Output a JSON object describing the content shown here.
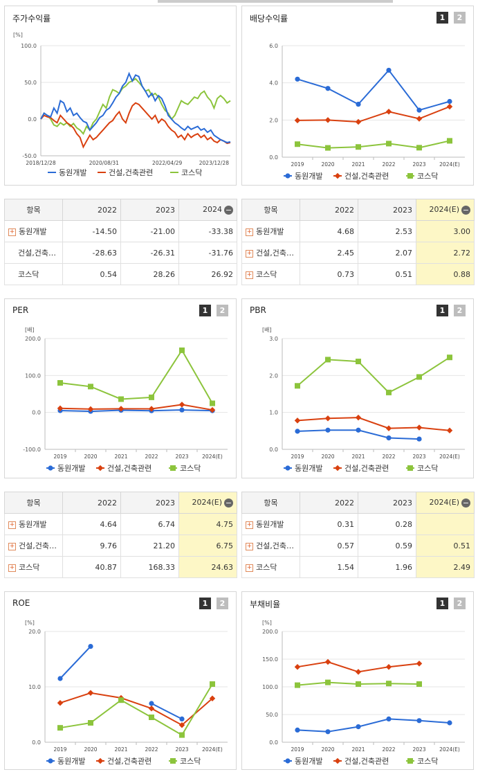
{
  "panels": {
    "price": {
      "title": "주가수익률"
    },
    "dividend": {
      "title": "배당수익률"
    },
    "per": {
      "title": "PER"
    },
    "pbr": {
      "title": "PBR"
    },
    "roe": {
      "title": "ROE"
    },
    "debt": {
      "title": "부채비율"
    }
  },
  "buttons": {
    "b1": "1",
    "b2": "2"
  },
  "tables": {
    "price": {
      "headers": [
        "항목",
        "2022",
        "2023",
        "2024"
      ],
      "rows": [
        {
          "label": "동원개발",
          "plus": true,
          "values": [
            "-14.50",
            "-21.00",
            "-33.38"
          ]
        },
        {
          "label": "건설,건축…",
          "plus": false,
          "values": [
            "-28.63",
            "-26.31",
            "-31.76"
          ]
        },
        {
          "label": "코스닥",
          "plus": false,
          "values": [
            "0.54",
            "28.26",
            "26.92"
          ]
        }
      ]
    },
    "dividend": {
      "headers": [
        "항목",
        "2022",
        "2023",
        "2024(E)"
      ],
      "rows": [
        {
          "label": "동원개발",
          "plus": true,
          "values": [
            "4.68",
            "2.53",
            "3.00"
          ]
        },
        {
          "label": "건설,건축…",
          "plus": true,
          "values": [
            "2.45",
            "2.07",
            "2.72"
          ]
        },
        {
          "label": "코스닥",
          "plus": true,
          "values": [
            "0.73",
            "0.51",
            "0.88"
          ]
        }
      ]
    },
    "per": {
      "headers": [
        "항목",
        "2022",
        "2023",
        "2024(E)"
      ],
      "rows": [
        {
          "label": "동원개발",
          "plus": true,
          "values": [
            "4.64",
            "6.74",
            "4.75"
          ]
        },
        {
          "label": "건설,건축…",
          "plus": true,
          "values": [
            "9.76",
            "21.20",
            "6.75"
          ]
        },
        {
          "label": "코스닥",
          "plus": true,
          "values": [
            "40.87",
            "168.33",
            "24.63"
          ]
        }
      ]
    },
    "pbr": {
      "headers": [
        "항목",
        "2022",
        "2023",
        "2024(E)"
      ],
      "rows": [
        {
          "label": "동원개발",
          "plus": true,
          "values": [
            "0.31",
            "0.28",
            ""
          ]
        },
        {
          "label": "건설,건축…",
          "plus": true,
          "values": [
            "0.57",
            "0.59",
            "0.51"
          ]
        },
        {
          "label": "코스닥",
          "plus": true,
          "values": [
            "1.54",
            "1.96",
            "2.49"
          ]
        }
      ]
    }
  },
  "colors": {
    "s1": "#2a6bd6",
    "s2": "#d9400f",
    "s3": "#8cc43c"
  },
  "chart_data": [
    {
      "id": "price",
      "type": "line",
      "unit": "[%]",
      "ylim": [
        -50,
        100
      ],
      "yticks": [
        "100.0",
        "50.0",
        "0.0",
        "-50.0"
      ],
      "ytickvals": [
        100,
        50,
        0,
        -50
      ],
      "xticks": [
        "2018/12/28",
        "2020/08/31",
        "2022/04/29",
        "2023/12/28"
      ],
      "series": [
        {
          "name": "동원개발",
          "values": [
            0,
            8,
            5,
            3,
            15,
            8,
            25,
            22,
            10,
            15,
            5,
            8,
            2,
            -3,
            -5,
            -15,
            -10,
            -5,
            2,
            5,
            12,
            15,
            22,
            30,
            35,
            45,
            50,
            62,
            52,
            60,
            58,
            45,
            38,
            30,
            35,
            25,
            32,
            28,
            18,
            5,
            0,
            -5,
            -8,
            -12,
            -15,
            -10,
            -14,
            -12,
            -10,
            -15,
            -13,
            -18,
            -15,
            -22,
            -25,
            -28,
            -30,
            -32,
            -31
          ]
        },
        {
          "name": "건설,건축관련",
          "values": [
            0,
            5,
            3,
            2,
            -2,
            -5,
            5,
            0,
            -5,
            -8,
            -12,
            -20,
            -25,
            -38,
            -30,
            -22,
            -28,
            -25,
            -20,
            -15,
            -10,
            -5,
            -2,
            5,
            10,
            0,
            -5,
            8,
            18,
            22,
            20,
            15,
            10,
            5,
            0,
            5,
            -5,
            0,
            -3,
            -10,
            -15,
            -18,
            -25,
            -22,
            -28,
            -20,
            -25,
            -22,
            -20,
            -25,
            -22,
            -28,
            -25,
            -30,
            -32,
            -28,
            -30,
            -33,
            -32
          ]
        },
        {
          "name": "코스닥",
          "values": [
            0,
            8,
            5,
            0,
            -8,
            -10,
            -5,
            -8,
            -5,
            -10,
            -6,
            -12,
            -15,
            -20,
            -10,
            -15,
            -5,
            0,
            10,
            20,
            15,
            30,
            40,
            38,
            35,
            42,
            45,
            50,
            52,
            55,
            50,
            45,
            38,
            40,
            32,
            35,
            30,
            20,
            12,
            8,
            0,
            5,
            15,
            25,
            22,
            20,
            25,
            30,
            28,
            35,
            38,
            30,
            25,
            15,
            28,
            32,
            28,
            22,
            25
          ]
        }
      ]
    },
    {
      "id": "dividend",
      "type": "line",
      "unit": "",
      "ylim": [
        0,
        6
      ],
      "yticks": [
        "6.0",
        "4.0",
        "2.0",
        "0.0"
      ],
      "ytickvals": [
        6,
        4,
        2,
        0
      ],
      "categories": [
        "2019",
        "2020",
        "2021",
        "2022",
        "2023",
        "2024(E)"
      ],
      "series": [
        {
          "name": "동원개발",
          "values": [
            4.2,
            3.7,
            2.85,
            4.68,
            2.53,
            3.0
          ]
        },
        {
          "name": "건설,건축관련",
          "values": [
            1.98,
            2.0,
            1.9,
            2.45,
            2.07,
            2.72
          ]
        },
        {
          "name": "코스닥",
          "values": [
            0.7,
            0.5,
            0.55,
            0.73,
            0.51,
            0.88
          ]
        }
      ]
    },
    {
      "id": "per",
      "type": "line",
      "unit": "[배]",
      "ylim": [
        -100,
        200
      ],
      "yticks": [
        "200.0",
        "100.0",
        "0.0",
        "-100.0"
      ],
      "ytickvals": [
        200,
        100,
        0,
        -100
      ],
      "categories": [
        "2019",
        "2020",
        "2021",
        "2022",
        "2023",
        "2024(E)"
      ],
      "series": [
        {
          "name": "동원개발",
          "values": [
            5,
            3,
            6,
            4.64,
            6.74,
            4.75
          ]
        },
        {
          "name": "건설,건축관련",
          "values": [
            11,
            9,
            10,
            9.76,
            21.2,
            6.75
          ]
        },
        {
          "name": "코스닥",
          "values": [
            80,
            70,
            36,
            40.87,
            168.33,
            24.63
          ]
        }
      ]
    },
    {
      "id": "pbr",
      "type": "line",
      "unit": "[배]",
      "ylim": [
        0,
        3
      ],
      "yticks": [
        "3.0",
        "2.0",
        "1.0",
        "0.0"
      ],
      "ytickvals": [
        3,
        2,
        1,
        0
      ],
      "categories": [
        "2019",
        "2020",
        "2021",
        "2022",
        "2023",
        "2024(E)"
      ],
      "series": [
        {
          "name": "동원개발",
          "values": [
            0.49,
            0.52,
            0.52,
            0.31,
            0.28,
            null
          ]
        },
        {
          "name": "건설,건축관련",
          "values": [
            0.78,
            0.84,
            0.86,
            0.57,
            0.59,
            0.51
          ]
        },
        {
          "name": "코스닥",
          "values": [
            1.72,
            2.43,
            2.38,
            1.54,
            1.96,
            2.49
          ]
        }
      ]
    },
    {
      "id": "roe",
      "type": "line",
      "unit": "[%]",
      "ylim": [
        0,
        20
      ],
      "yticks": [
        "20.0",
        "10.0",
        "0.0"
      ],
      "ytickvals": [
        20,
        10,
        0
      ],
      "categories": [
        "2019",
        "2020",
        "2021",
        "2022",
        "2023",
        "2024(E)"
      ],
      "series": [
        {
          "name": "동원개발",
          "values": [
            11.5,
            17.3,
            null,
            7.0,
            4.2,
            null
          ]
        },
        {
          "name": "건설,건축관련",
          "values": [
            7.1,
            8.9,
            8.0,
            6.1,
            3.1,
            7.9
          ]
        },
        {
          "name": "코스닥",
          "values": [
            2.6,
            3.5,
            7.6,
            4.5,
            1.3,
            10.5
          ]
        }
      ]
    },
    {
      "id": "debt",
      "type": "line",
      "unit": "[%]",
      "ylim": [
        0,
        200
      ],
      "yticks": [
        "200.0",
        "150.0",
        "100.0",
        "50.0",
        "0.0"
      ],
      "ytickvals": [
        200,
        150,
        100,
        50,
        0
      ],
      "categories": [
        "2019",
        "2020",
        "2021",
        "2022",
        "2023",
        "2024(E)"
      ],
      "series": [
        {
          "name": "동원개발",
          "values": [
            22,
            19,
            28,
            42,
            39,
            35
          ]
        },
        {
          "name": "건설,건축관련",
          "values": [
            136,
            145,
            127,
            136,
            142,
            null
          ]
        },
        {
          "name": "코스닥",
          "values": [
            103,
            108,
            105,
            106,
            105,
            null
          ]
        }
      ]
    }
  ]
}
